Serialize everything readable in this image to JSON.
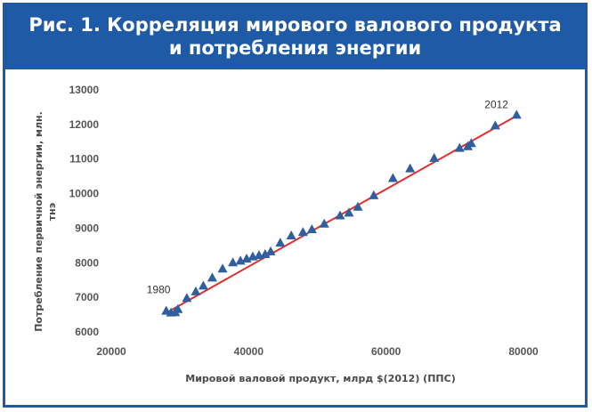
{
  "header": {
    "title_line1": "Рис. 1. Корреляция мирового валового продукта",
    "title_line2": "и потребления энергии"
  },
  "colors": {
    "frame": "#1f5aa6",
    "marker": "#2f5f9e",
    "trendline": "#e03030"
  },
  "chart_data": {
    "type": "scatter",
    "xlabel": "Мировой валовой продукт, млрд $(2012) (ППС)",
    "ylabel_line1": "Потребление первичной энергии, млн.",
    "ylabel_line2": "тнэ",
    "xlim": [
      20000,
      80000
    ],
    "ylim": [
      6000,
      13000
    ],
    "x_ticks": [
      "20000",
      "40000",
      "60000",
      "80000"
    ],
    "y_ticks": [
      "6000",
      "7000",
      "8000",
      "9000",
      "10000",
      "11000",
      "12000",
      "13000"
    ],
    "grid": false,
    "marker": "triangle",
    "trendline": {
      "x": [
        28000,
        79000
      ],
      "y": [
        6550,
        12250
      ]
    },
    "annotations": [
      {
        "text": "1980",
        "x": 28000,
        "y": 6600
      },
      {
        "text": "2012",
        "x": 79000,
        "y": 12270
      }
    ],
    "points": [
      [
        28000,
        6600
      ],
      [
        28700,
        6550
      ],
      [
        29300,
        6560
      ],
      [
        29700,
        6650
      ],
      [
        31000,
        6970
      ],
      [
        32300,
        7160
      ],
      [
        33400,
        7330
      ],
      [
        34700,
        7560
      ],
      [
        36200,
        7820
      ],
      [
        37700,
        8000
      ],
      [
        38800,
        8050
      ],
      [
        39700,
        8110
      ],
      [
        40600,
        8170
      ],
      [
        41500,
        8210
      ],
      [
        42400,
        8240
      ],
      [
        43200,
        8320
      ],
      [
        44600,
        8570
      ],
      [
        46200,
        8780
      ],
      [
        47900,
        8880
      ],
      [
        49200,
        8960
      ],
      [
        51000,
        9120
      ],
      [
        53300,
        9360
      ],
      [
        54600,
        9440
      ],
      [
        55900,
        9610
      ],
      [
        58200,
        9940
      ],
      [
        61000,
        10440
      ],
      [
        63500,
        10720
      ],
      [
        67000,
        11020
      ],
      [
        70700,
        11310
      ],
      [
        71900,
        11360
      ],
      [
        72400,
        11450
      ],
      [
        75900,
        11960
      ],
      [
        79000,
        12270
      ]
    ]
  }
}
